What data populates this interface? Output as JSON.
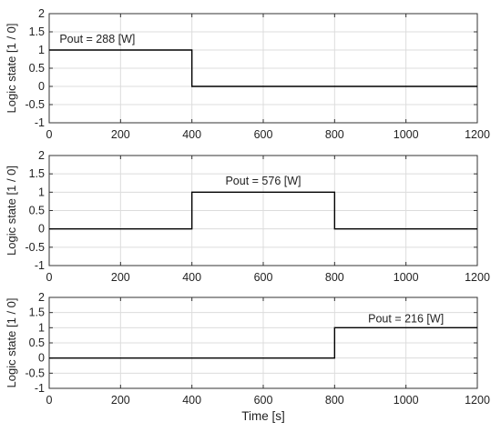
{
  "figure": {
    "xlabel_shared": "Time [s]"
  },
  "chart_data": [
    {
      "type": "line",
      "title": "",
      "xlabel": "",
      "ylabel": "Logic state [1 / 0]",
      "xlim": [
        0,
        1200
      ],
      "ylim": [
        -1,
        2
      ],
      "xticks": [
        0,
        200,
        400,
        600,
        800,
        1000,
        1200
      ],
      "yticks": [
        -1,
        -0.5,
        0,
        0.5,
        1,
        1.5,
        2
      ],
      "ytick_labels": [
        "-1",
        "-0.5",
        "0",
        "0.5",
        "1",
        "1.5",
        "2"
      ],
      "grid": true,
      "annotation": {
        "text": "Pout = 288 [W]",
        "x": 135,
        "y": 1.3
      },
      "series": [
        {
          "values_x": [
            0,
            400,
            400,
            1200
          ],
          "values_y": [
            1,
            1,
            0,
            0
          ]
        }
      ]
    },
    {
      "type": "line",
      "title": "",
      "xlabel": "",
      "ylabel": "Logic state [1 / 0]",
      "xlim": [
        0,
        1200
      ],
      "ylim": [
        -1,
        2
      ],
      "xticks": [
        0,
        200,
        400,
        600,
        800,
        1000,
        1200
      ],
      "yticks": [
        -1,
        -0.5,
        0,
        0.5,
        1,
        1.5,
        2
      ],
      "ytick_labels": [
        "-1",
        "-0.5",
        "0",
        "0.5",
        "1",
        "1.5",
        "2"
      ],
      "grid": true,
      "annotation": {
        "text": "Pout = 576 [W]",
        "x": 600,
        "y": 1.3
      },
      "series": [
        {
          "values_x": [
            0,
            400,
            400,
            800,
            800,
            1200
          ],
          "values_y": [
            0,
            0,
            1,
            1,
            0,
            0
          ]
        }
      ]
    },
    {
      "type": "line",
      "title": "",
      "xlabel": "Time [s]",
      "ylabel": "Logic state [1 / 0]",
      "xlim": [
        0,
        1200
      ],
      "ylim": [
        -1,
        2
      ],
      "xticks": [
        0,
        200,
        400,
        600,
        800,
        1000,
        1200
      ],
      "yticks": [
        -1,
        -0.5,
        0,
        0.5,
        1,
        1.5,
        2
      ],
      "ytick_labels": [
        "-1",
        "-0.5",
        "0",
        "0.5",
        "1",
        "1.5",
        "2"
      ],
      "grid": true,
      "annotation": {
        "text": "Pout = 216 [W]",
        "x": 1000,
        "y": 1.3
      },
      "series": [
        {
          "values_x": [
            0,
            800,
            800,
            1200
          ],
          "values_y": [
            0,
            0,
            1,
            1
          ]
        }
      ]
    }
  ],
  "colors": {
    "line": "#000000",
    "grid": "#dcdcdc",
    "axis": "#333333",
    "text": "#222222"
  }
}
